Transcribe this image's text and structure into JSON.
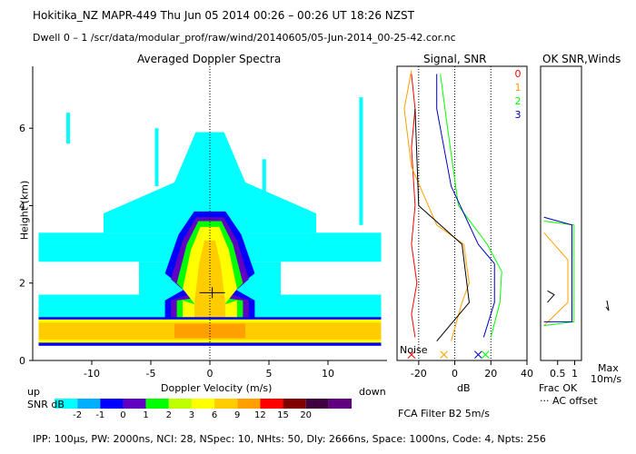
{
  "header": {
    "line1": "Hokitika_NZ   MAPR-449   Thu Jun 05 2014 00:26 – 00:26 UT 18:26 NZST",
    "line2": "Dwell   0 –  1    /scr/data/modular_prof/raw/wind/20140605/05-Jun-2014_00-25-42.cor.nc"
  },
  "colors": {
    "cyan": "#00ffff",
    "lightblue": "#00b0ff",
    "blue": "#0000ff",
    "purple": "#6000c0",
    "green": "#00ff00",
    "yellowgreen": "#c0ff00",
    "yellow": "#ffff00",
    "gold": "#ffcc00",
    "orange": "#ffa000",
    "red": "#ff0000",
    "maroon": "#800000",
    "darkpurple": "#400040",
    "violet": "#600080"
  },
  "chart_data": [
    {
      "type": "heatmap",
      "title": "Averaged Doppler Spectra",
      "xlabel": "Doppler Velocity (m/s)",
      "ylabel": "Height (km)",
      "xlim": [
        -15,
        15
      ],
      "ylim": [
        0,
        7.6
      ],
      "xticks": [
        "-10",
        "-5",
        "0",
        "5",
        "10"
      ],
      "xtick_values": [
        -10,
        -5,
        0,
        5,
        10
      ],
      "yticks": [
        "0",
        "2",
        "4",
        "6"
      ],
      "ytick_values": [
        0,
        2,
        4,
        6
      ],
      "layers": [
        {
          "level": "-2",
          "color": "#00ffff",
          "x": [
            -14.5,
            14.5
          ],
          "y": [
            0.45,
            3.3
          ]
        },
        {
          "level": "-1",
          "color": "#0000ff",
          "x": [
            -14.5,
            14.5
          ],
          "y": [
            0.4,
            1.08
          ]
        },
        {
          "level": "1",
          "color": "#00ff00",
          "x": [
            -3.1,
            3.1
          ],
          "y": [
            1.0,
            3.6
          ]
        },
        {
          "level": "3",
          "color": "#ffff00",
          "x": [
            -14.5,
            14.5
          ],
          "y": [
            0.5,
            1.0
          ]
        },
        {
          "level": "6",
          "color": "#ffcc00",
          "x": [
            -1.5,
            1.5
          ],
          "y": [
            0.95,
            3.1
          ]
        }
      ],
      "marker": {
        "velocity": 0.2,
        "height": 1.75
      },
      "zero_line": 0
    },
    {
      "type": "line",
      "title": "Signal, SNR",
      "xlabel": "dB",
      "xlim": [
        -32,
        40
      ],
      "ylim": [
        0,
        7.6
      ],
      "xticks": [
        "-20",
        "0",
        "20",
        "40"
      ],
      "xtick_values": [
        -20,
        0,
        20,
        40
      ],
      "noise_label": "Noise",
      "series": [
        {
          "name": "0",
          "color": "#ff0000",
          "points": [
            [
              -22,
              0.6
            ],
            [
              -24,
              1.2
            ],
            [
              -21,
              2.0
            ],
            [
              -24,
              3.0
            ],
            [
              -22,
              4.0
            ],
            [
              -24,
              5.5
            ],
            [
              -22,
              6.5
            ],
            [
              -24,
              7.4
            ]
          ]
        },
        {
          "name": "1",
          "color": "#ffa000",
          "points": [
            [
              -2,
              0.5
            ],
            [
              4,
              1.5
            ],
            [
              8,
              2.0
            ],
            [
              5,
              3.0
            ],
            [
              -10,
              3.5
            ],
            [
              -24,
              5.0
            ],
            [
              -28,
              6.5
            ],
            [
              -24,
              7.5
            ]
          ]
        },
        {
          "name": "2",
          "color": "#00ff00",
          "points": [
            [
              20,
              0.6
            ],
            [
              25,
              1.5
            ],
            [
              26,
              2.3
            ],
            [
              18,
              3.0
            ],
            [
              2,
              4.0
            ],
            [
              -4,
              6.0
            ],
            [
              -8,
              7.4
            ]
          ]
        },
        {
          "name": "3",
          "color": "#0000c0",
          "points": [
            [
              16,
              0.6
            ],
            [
              22,
              1.5
            ],
            [
              22,
              2.5
            ],
            [
              13,
              3.0
            ],
            [
              -2,
              4.5
            ],
            [
              -10,
              6.5
            ],
            [
              -10,
              7.4
            ]
          ]
        }
      ],
      "dotted_lines_x": [
        -20,
        0,
        20
      ]
    },
    {
      "type": "line",
      "title": "OK SNR,Winds",
      "xlabel": "Frac OK",
      "xlim": [
        0,
        1.2
      ],
      "ylim": [
        0,
        7.6
      ],
      "xticks": [
        "0.5",
        "1"
      ],
      "xtick_values": [
        0.5,
        1.0
      ],
      "notes": [
        "Max",
        "10m/s",
        "··· AC offset"
      ],
      "series": [
        {
          "name": "1",
          "color": "#ffa000",
          "points": [
            [
              0.1,
              0.9
            ],
            [
              0.8,
              1.5
            ],
            [
              0.8,
              2.6
            ],
            [
              0.1,
              3.3
            ]
          ]
        },
        {
          "name": "2",
          "color": "#00ff00",
          "points": [
            [
              0.1,
              0.9
            ],
            [
              0.98,
              1.0
            ],
            [
              0.98,
              3.5
            ],
            [
              0.1,
              3.6
            ]
          ]
        },
        {
          "name": "3",
          "color": "#0000c0",
          "points": [
            [
              0.1,
              1.0
            ],
            [
              0.92,
              1.0
            ],
            [
              0.92,
              3.5
            ],
            [
              0.1,
              3.7
            ]
          ]
        }
      ]
    }
  ],
  "colorbar": {
    "label_left": "up",
    "label_right": "down",
    "snr_label": "SNR dB",
    "levels": [
      "-2",
      "-1",
      "0",
      "1",
      "2",
      "3",
      "6",
      "9",
      "12",
      "15",
      "20"
    ],
    "colors": [
      "#00ffff",
      "#00b0ff",
      "#0000ff",
      "#6000c0",
      "#00ff00",
      "#c0ff00",
      "#ffff00",
      "#ffcc00",
      "#ffa000",
      "#ff0000",
      "#800000",
      "#400040",
      "#600080"
    ]
  },
  "legend": {
    "channels": [
      "0",
      "1",
      "2",
      "3"
    ],
    "colors": [
      "#ff0000",
      "#ffa000",
      "#00ff00",
      "#0000c0"
    ]
  },
  "filter": "FCA Filter B2   5m/s",
  "footer": "IPP: 100μs,  PW: 2000ns,  NCI:  28,  NSpec: 10,  NHts: 50,  Dly: 2666ns,  Space: 1000ns,  Code: 4,  Npts: 256"
}
